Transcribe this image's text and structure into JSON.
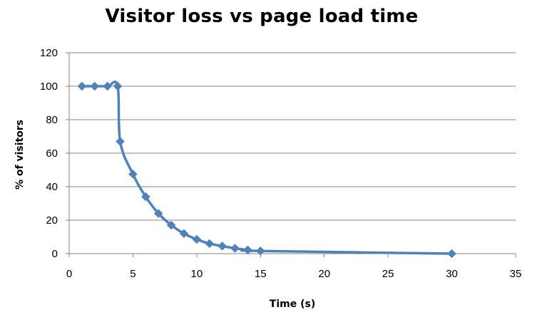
{
  "chart_data": {
    "type": "scatter",
    "title": "Visitor loss vs page load time",
    "xlabel": "Time (s)",
    "ylabel": "% of visitors",
    "xlim": [
      0,
      35
    ],
    "ylim": [
      0,
      120
    ],
    "x_ticks": [
      0,
      5,
      10,
      15,
      20,
      25,
      30,
      35
    ],
    "y_ticks": [
      0,
      20,
      40,
      60,
      80,
      100,
      120
    ],
    "grid": "horizontal",
    "series_color": "#4F81BD",
    "gridline_color": "#868686",
    "marker": "diamond",
    "line": "smoothed",
    "series": [
      {
        "x": [
          1,
          2,
          3,
          3.8,
          4,
          5,
          6,
          7,
          8,
          9,
          10,
          11,
          12,
          13,
          14,
          15,
          30
        ],
        "y": [
          100,
          100,
          100,
          100,
          67,
          47.5,
          34,
          24,
          17,
          12,
          8.5,
          6,
          4.5,
          3.2,
          2.2,
          1.6,
          0
        ]
      }
    ]
  }
}
